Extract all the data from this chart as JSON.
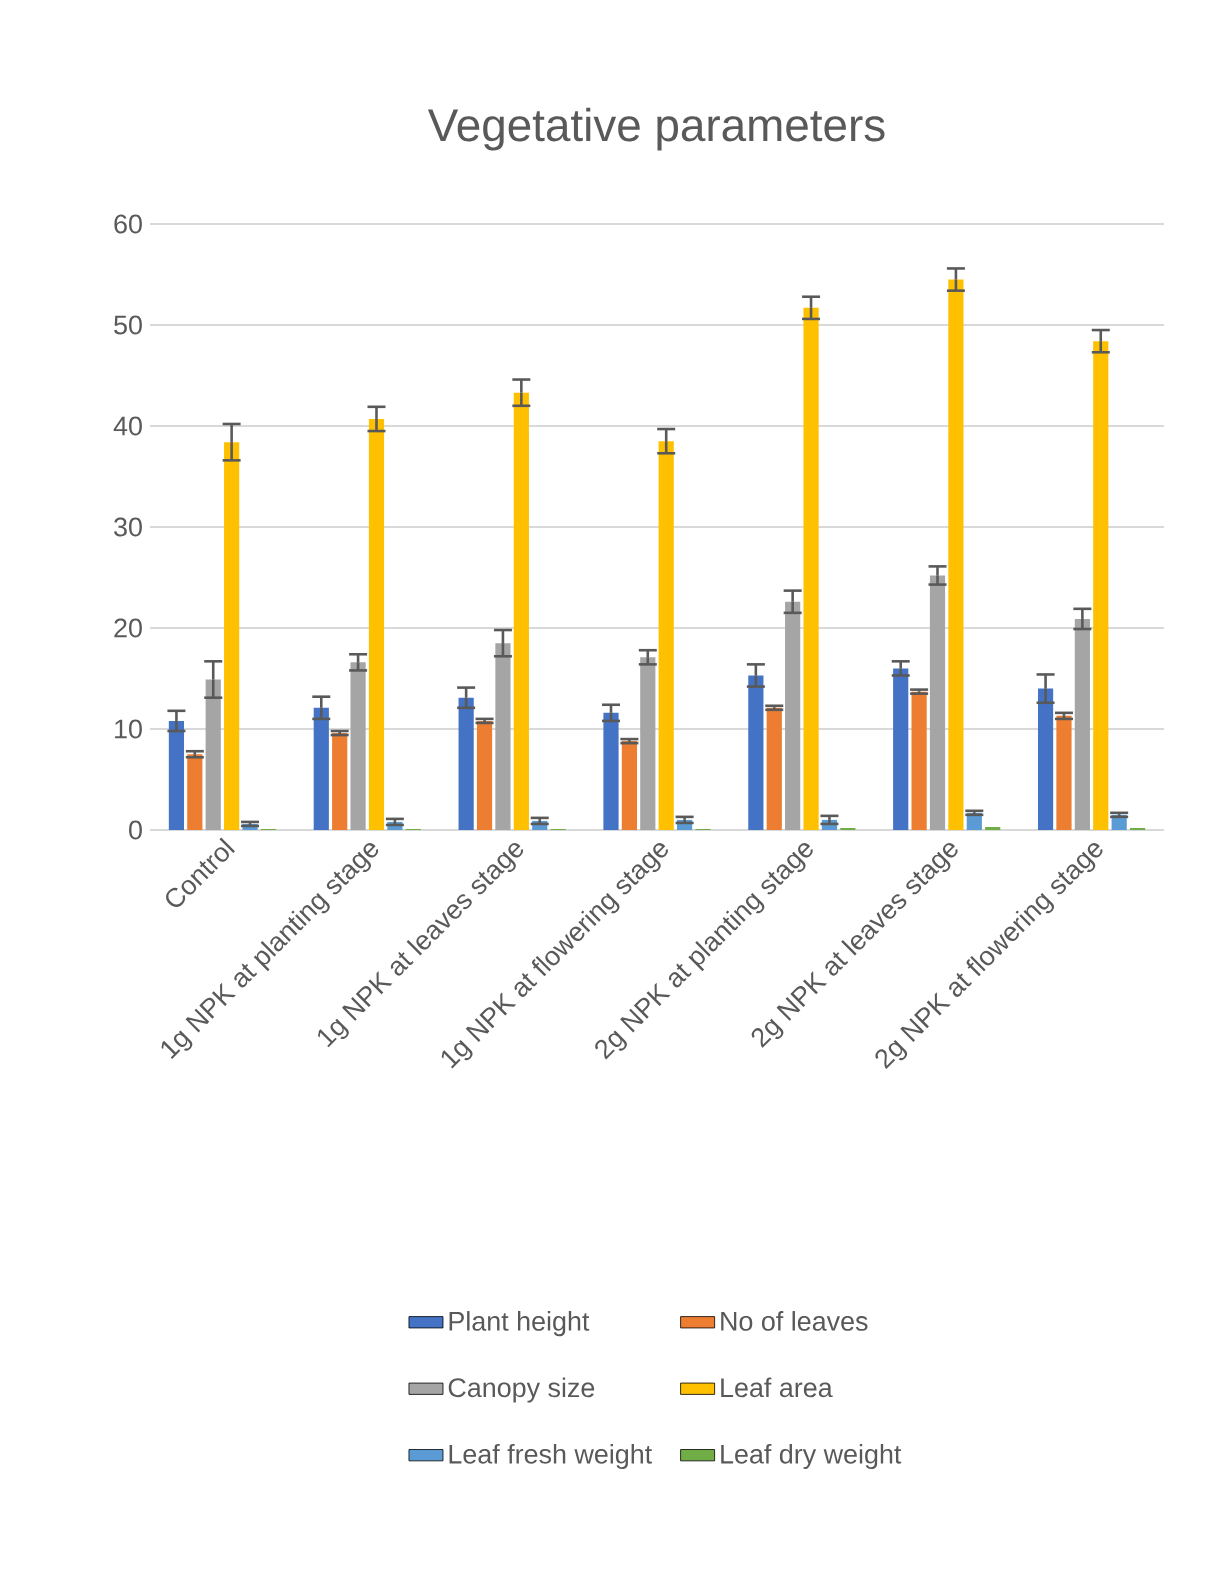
{
  "chart_data": {
    "type": "bar",
    "title": "Vegetative parameters",
    "categories": [
      "Control",
      "1g NPK at planting stage",
      "1g NPK at leaves stage",
      "1g NPK at flowering stage",
      "2g NPK at planting stage",
      "2g NPK at leaves stage",
      "2g NPK at flowering stage"
    ],
    "series": [
      {
        "name": "Plant height",
        "color": "#4472c4",
        "values": [
          10.8,
          12.1,
          13.1,
          11.6,
          15.3,
          16.0,
          14.0
        ],
        "errors": [
          1.0,
          1.1,
          1.0,
          0.8,
          1.1,
          0.7,
          1.4
        ]
      },
      {
        "name": "No of leaves",
        "color": "#ed7d31",
        "values": [
          7.5,
          9.6,
          10.8,
          8.8,
          12.1,
          13.7,
          11.3
        ],
        "errors": [
          0.3,
          0.2,
          0.2,
          0.2,
          0.2,
          0.2,
          0.3
        ]
      },
      {
        "name": "Canopy size",
        "color": "#a5a5a5",
        "values": [
          14.9,
          16.6,
          18.5,
          17.1,
          22.6,
          25.2,
          20.9
        ],
        "errors": [
          1.8,
          0.8,
          1.3,
          0.7,
          1.1,
          0.9,
          1.0
        ]
      },
      {
        "name": "Leaf area",
        "color": "#ffc000",
        "values": [
          38.4,
          40.7,
          43.3,
          38.5,
          51.7,
          54.5,
          48.4
        ],
        "errors": [
          1.8,
          1.2,
          1.3,
          1.2,
          1.1,
          1.1,
          1.1
        ]
      },
      {
        "name": "Leaf fresh weight",
        "color": "#5b9bd5",
        "values": [
          0.6,
          0.8,
          0.9,
          1.0,
          1.0,
          1.7,
          1.5
        ],
        "errors": [
          0.2,
          0.3,
          0.3,
          0.3,
          0.4,
          0.2,
          0.2
        ]
      },
      {
        "name": "Leaf dry weight",
        "color": "#70ad47",
        "values": [
          0.1,
          0.1,
          0.1,
          0.1,
          0.2,
          0.3,
          0.2
        ]
      }
    ],
    "ylim": [
      0,
      60
    ],
    "yticks": [
      0,
      10,
      20,
      30,
      40,
      50,
      60
    ],
    "grid": "y",
    "legend": "bottom"
  }
}
